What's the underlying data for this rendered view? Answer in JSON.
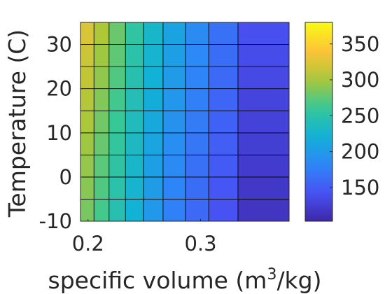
{
  "chart_data": {
    "type": "heatmap",
    "xlabel": "specific volume (m",
    "xlabel_sup": "3",
    "xlabel_tail": "/kg)",
    "ylabel": "Temperature (C)",
    "x_tick_labels": [
      "0.2",
      "0.3"
    ],
    "x_tick_values": [
      0.2,
      0.3
    ],
    "y_tick_labels": [
      "30",
      "20",
      "10",
      "0",
      "-10"
    ],
    "y_tick_values": [
      30,
      20,
      10,
      0,
      -10
    ],
    "x_edges": [
      0.1933,
      0.2053,
      0.2187,
      0.2333,
      0.2493,
      0.2667,
      0.2867,
      0.3073,
      0.3333,
      0.3787
    ],
    "y_edges": [
      -10,
      -5,
      0,
      5,
      10,
      15,
      20,
      25,
      30,
      35
    ],
    "xlim": [
      0.1933,
      0.3787
    ],
    "ylim": [
      -10,
      35
    ],
    "colorbar": {
      "range": [
        103,
        380
      ],
      "tick_labels": [
        "350",
        "300",
        "250",
        "200",
        "150"
      ],
      "tick_values": [
        350,
        300,
        250,
        200,
        150
      ]
    },
    "values": [
      [
        284,
        266,
        245,
        222,
        198,
        178,
        160,
        142,
        116
      ],
      [
        289,
        270,
        249,
        226,
        202,
        181,
        163,
        145,
        119
      ],
      [
        293,
        274,
        253,
        230,
        206,
        185,
        166,
        148,
        122
      ],
      [
        297,
        278,
        257,
        234,
        210,
        189,
        170,
        151,
        125
      ],
      [
        301,
        282,
        261,
        238,
        214,
        193,
        173,
        154,
        128
      ],
      [
        306,
        287,
        265,
        242,
        218,
        197,
        177,
        157,
        131
      ],
      [
        311,
        292,
        270,
        246,
        222,
        200,
        180,
        160,
        134
      ],
      [
        316,
        297,
        275,
        250,
        226,
        204,
        184,
        163,
        137
      ],
      [
        322,
        302,
        279,
        254,
        230,
        208,
        187,
        166,
        140
      ]
    ]
  }
}
